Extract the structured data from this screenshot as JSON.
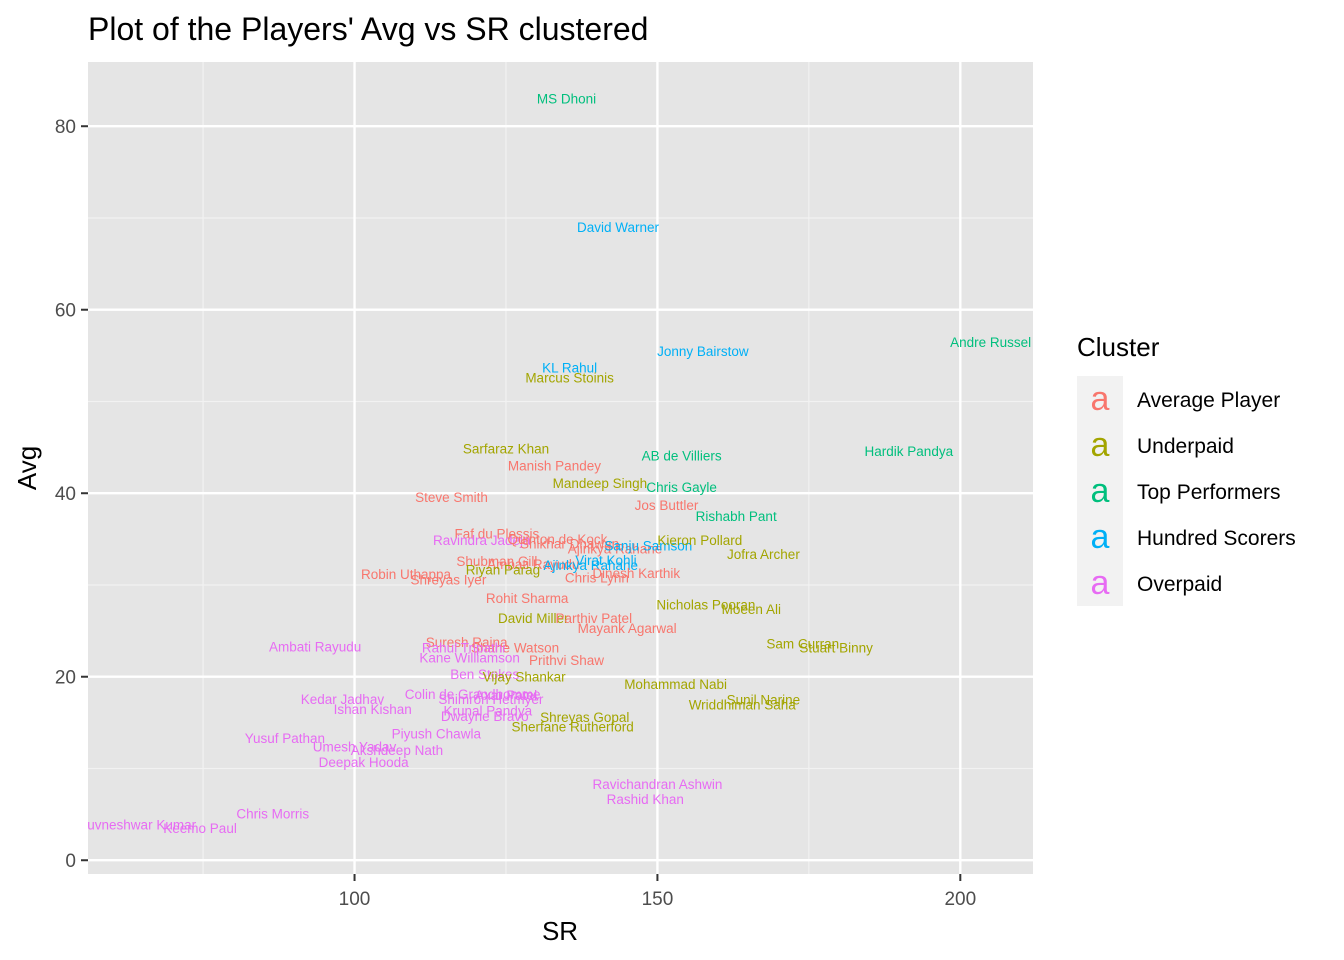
{
  "chart_data": {
    "type": "scatter",
    "title": "Plot of the Players' Avg vs SR clustered",
    "xlabel": "SR",
    "ylabel": "Avg",
    "xlim": [
      56,
      212
    ],
    "ylim": [
      -1.5,
      87
    ],
    "x_ticks": [
      100,
      150,
      200
    ],
    "y_ticks": [
      0,
      20,
      40,
      60,
      80
    ],
    "grid": true,
    "legend": {
      "title": "Cluster",
      "placement": "right",
      "key_glyph": "a",
      "entries": [
        {
          "name": "Average Player",
          "color": "#F8766D"
        },
        {
          "name": "Underpaid",
          "color": "#A3A500"
        },
        {
          "name": "Top Performers",
          "color": "#00BF7D"
        },
        {
          "name": "Hundred Scorers",
          "color": "#00B0F6"
        },
        {
          "name": "Overpaid",
          "color": "#E76BF3"
        }
      ]
    },
    "points": [
      {
        "label": "MS Dhoni",
        "x": 135.0,
        "y": 83.0,
        "cluster": "Top Performers"
      },
      {
        "label": "David Warner",
        "x": 143.5,
        "y": 69.0,
        "cluster": "Hundred Scorers"
      },
      {
        "label": "Andre Russel",
        "x": 205.0,
        "y": 56.5,
        "cluster": "Top Performers"
      },
      {
        "label": "Jonny Bairstow",
        "x": 157.5,
        "y": 55.5,
        "cluster": "Hundred Scorers"
      },
      {
        "label": "KL Rahul",
        "x": 135.5,
        "y": 53.7,
        "cluster": "Hundred Scorers"
      },
      {
        "label": "Marcus Stoinis",
        "x": 135.5,
        "y": 52.6,
        "cluster": "Underpaid"
      },
      {
        "label": "Sarfaraz Khan",
        "x": 125.0,
        "y": 44.9,
        "cluster": "Underpaid"
      },
      {
        "label": "AB de Villiers",
        "x": 154.0,
        "y": 44.1,
        "cluster": "Top Performers"
      },
      {
        "label": "Hardik Pandya",
        "x": 191.5,
        "y": 44.6,
        "cluster": "Top Performers"
      },
      {
        "label": "Manish Pandey",
        "x": 133.0,
        "y": 43.0,
        "cluster": "Average Player"
      },
      {
        "label": "Mandeep Singh",
        "x": 140.5,
        "y": 41.1,
        "cluster": "Underpaid"
      },
      {
        "label": "Chris Gayle",
        "x": 154.0,
        "y": 40.7,
        "cluster": "Top Performers"
      },
      {
        "label": "Steve Smith",
        "x": 116.0,
        "y": 39.6,
        "cluster": "Average Player"
      },
      {
        "label": "Jos Buttler",
        "x": 151.5,
        "y": 38.7,
        "cluster": "Average Player"
      },
      {
        "label": "Rishabh Pant",
        "x": 163.0,
        "y": 37.5,
        "cluster": "Top Performers"
      },
      {
        "label": "Faf du Plessis",
        "x": 123.5,
        "y": 35.6,
        "cluster": "Average Player"
      },
      {
        "label": "Ravindra Jadeja",
        "x": 121.0,
        "y": 34.9,
        "cluster": "Overpaid"
      },
      {
        "label": "Quinton de Kock",
        "x": 133.5,
        "y": 35.0,
        "cluster": "Average Player"
      },
      {
        "label": "Shikhar Dhawan",
        "x": 135.5,
        "y": 34.5,
        "cluster": "Average Player"
      },
      {
        "label": "Ajinkya Rahane",
        "x": 143.0,
        "y": 34.0,
        "cluster": "Average Player"
      },
      {
        "label": "Sanju Samson",
        "x": 148.5,
        "y": 34.3,
        "cluster": "Hundred Scorers"
      },
      {
        "label": "Kieron Pollard",
        "x": 157.0,
        "y": 34.9,
        "cluster": "Underpaid"
      },
      {
        "label": "Jofra Archer",
        "x": 167.5,
        "y": 33.4,
        "cluster": "Underpaid"
      },
      {
        "label": "Virat Kohli",
        "x": 141.5,
        "y": 32.7,
        "cluster": "Hundred Scorers"
      },
      {
        "label": "Shubman Gill",
        "x": 123.5,
        "y": 32.6,
        "cluster": "Average Player"
      },
      {
        "label": "Ambati Rayudu",
        "x": 129.5,
        "y": 32.3,
        "cluster": "Average Player"
      },
      {
        "label": "Ajinkya Rahane",
        "x": 139.0,
        "y": 32.2,
        "cluster": "Hundred Scorers"
      },
      {
        "label": "Riyan Parag",
        "x": 124.5,
        "y": 31.7,
        "cluster": "Underpaid"
      },
      {
        "label": "Dinesh Karthik",
        "x": 146.5,
        "y": 31.3,
        "cluster": "Average Player"
      },
      {
        "label": "Chris Lynn",
        "x": 140.0,
        "y": 30.8,
        "cluster": "Average Player"
      },
      {
        "label": "Robin Uthappa",
        "x": 108.5,
        "y": 31.2,
        "cluster": "Average Player"
      },
      {
        "label": "Shreyas Iyer",
        "x": 115.5,
        "y": 30.6,
        "cluster": "Average Player"
      },
      {
        "label": "Rohit Sharma",
        "x": 128.5,
        "y": 28.6,
        "cluster": "Average Player"
      },
      {
        "label": "Nicholas Pooran",
        "x": 158.0,
        "y": 27.9,
        "cluster": "Underpaid"
      },
      {
        "label": "Moeen Ali",
        "x": 165.5,
        "y": 27.4,
        "cluster": "Underpaid"
      },
      {
        "label": "David Miller",
        "x": 129.5,
        "y": 26.4,
        "cluster": "Underpaid"
      },
      {
        "label": "Parthiv Patel",
        "x": 139.5,
        "y": 26.4,
        "cluster": "Average Player"
      },
      {
        "label": "Mayank Agarwal",
        "x": 145.0,
        "y": 25.3,
        "cluster": "Average Player"
      },
      {
        "label": "Suresh Raina",
        "x": 118.5,
        "y": 23.8,
        "cluster": "Average Player"
      },
      {
        "label": "Shane Watson",
        "x": 126.5,
        "y": 23.2,
        "cluster": "Average Player"
      },
      {
        "label": "Rahul Tripathi",
        "x": 118.0,
        "y": 23.2,
        "cluster": "Overpaid"
      },
      {
        "label": "Ambati Rayudu",
        "x": 93.5,
        "y": 23.3,
        "cluster": "Overpaid"
      },
      {
        "label": "Sam Curran",
        "x": 174.0,
        "y": 23.6,
        "cluster": "Underpaid"
      },
      {
        "label": "Stuart Binny",
        "x": 179.5,
        "y": 23.2,
        "cluster": "Underpaid"
      },
      {
        "label": "Kane Williamson",
        "x": 119.0,
        "y": 22.1,
        "cluster": "Overpaid"
      },
      {
        "label": "Prithvi Shaw",
        "x": 135.0,
        "y": 21.8,
        "cluster": "Average Player"
      },
      {
        "label": "Ben Stokes",
        "x": 121.5,
        "y": 20.3,
        "cluster": "Overpaid"
      },
      {
        "label": "Vijay Shankar",
        "x": 128.0,
        "y": 20.0,
        "cluster": "Underpaid"
      },
      {
        "label": "Mohammad Nabi",
        "x": 153.0,
        "y": 19.2,
        "cluster": "Underpaid"
      },
      {
        "label": "Colin de Grandhomme",
        "x": 119.5,
        "y": 18.1,
        "cluster": "Overpaid"
      },
      {
        "label": "Axar Patel",
        "x": 125.0,
        "y": 18.0,
        "cluster": "Overpaid"
      },
      {
        "label": "Shimron Hetmyer",
        "x": 122.5,
        "y": 17.6,
        "cluster": "Overpaid"
      },
      {
        "label": "Kedar Jadhav",
        "x": 98.0,
        "y": 17.6,
        "cluster": "Overpaid"
      },
      {
        "label": "Sunil Narine",
        "x": 167.5,
        "y": 17.5,
        "cluster": "Underpaid"
      },
      {
        "label": "Wriddhiman Saha",
        "x": 164.0,
        "y": 17.0,
        "cluster": "Underpaid"
      },
      {
        "label": "Ishan Kishan",
        "x": 103.0,
        "y": 16.5,
        "cluster": "Overpaid"
      },
      {
        "label": "Krunal Pandya",
        "x": 122.0,
        "y": 16.3,
        "cluster": "Overpaid"
      },
      {
        "label": "Dwayne Bravo",
        "x": 121.5,
        "y": 15.7,
        "cluster": "Overpaid"
      },
      {
        "label": "Shreyas Gopal",
        "x": 138.0,
        "y": 15.6,
        "cluster": "Underpaid"
      },
      {
        "label": "Sherfane Rutherford",
        "x": 136.0,
        "y": 14.6,
        "cluster": "Underpaid"
      },
      {
        "label": "Piyush Chawla",
        "x": 113.5,
        "y": 13.8,
        "cluster": "Overpaid"
      },
      {
        "label": "Yusuf Pathan",
        "x": 88.5,
        "y": 13.3,
        "cluster": "Overpaid"
      },
      {
        "label": "Umesh Yadav",
        "x": 100.0,
        "y": 12.4,
        "cluster": "Overpaid"
      },
      {
        "label": "Akshdeep Nath",
        "x": 107.0,
        "y": 12.0,
        "cluster": "Overpaid"
      },
      {
        "label": "Deepak Hooda",
        "x": 101.5,
        "y": 10.7,
        "cluster": "Overpaid"
      },
      {
        "label": "Ravichandran Ashwin",
        "x": 150.0,
        "y": 8.3,
        "cluster": "Overpaid"
      },
      {
        "label": "Rashid Khan",
        "x": 148.0,
        "y": 6.7,
        "cluster": "Overpaid"
      },
      {
        "label": "Chris Morris",
        "x": 86.5,
        "y": 5.1,
        "cluster": "Overpaid"
      },
      {
        "label": "Bhuvneshwar Kumar",
        "x": 63.5,
        "y": 3.9,
        "cluster": "Overpaid"
      },
      {
        "label": "Keemo Paul",
        "x": 74.5,
        "y": 3.5,
        "cluster": "Overpaid"
      }
    ]
  }
}
